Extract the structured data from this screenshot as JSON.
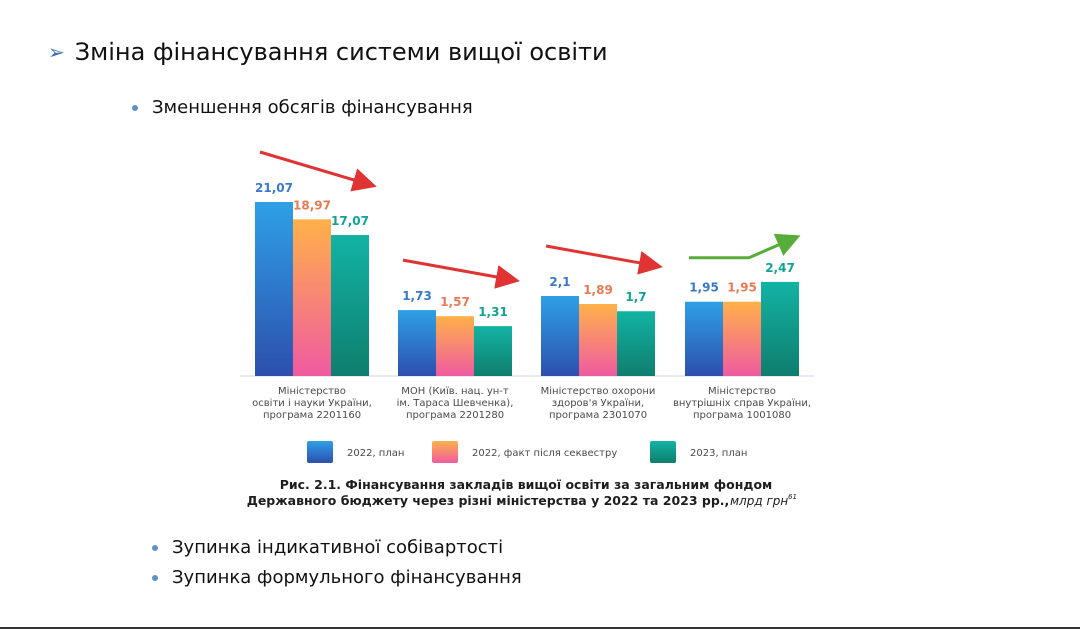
{
  "slide": {
    "title_marker": "➢",
    "title": "Зміна фінансування системи вищої освіти",
    "bullet_top": "Зменшення обсягів фінансування",
    "bullets_bottom": [
      "Зупинка індикативної собівартості",
      "Зупинка формульного фінансування"
    ]
  },
  "colors": {
    "series": [
      {
        "top": "#2ea0e6",
        "bottom": "#2d4fae"
      },
      {
        "top": "#ffb14a",
        "bottom": "#ef5aa0"
      },
      {
        "top": "#12b3a4",
        "bottom": "#0f7e6e"
      }
    ],
    "label": [
      "#3a79c9",
      "#e77a53",
      "#12a394"
    ],
    "trend_down": "#e03333",
    "trend_up": "#58ad3a"
  },
  "chart_data": {
    "type": "bar",
    "categories": [
      [
        "Міністерство",
        "освіти і науки України,",
        "програма 2201160"
      ],
      [
        "МОН (Київ. нац. ун-т",
        "ім. Тараса Шевченка),",
        "програма 2201280"
      ],
      [
        "Міністерство охорони",
        "здоров'я України,",
        "програма 2301070"
      ],
      [
        "Міністерство",
        "внутрішніх справ України,",
        "програма 1001080"
      ]
    ],
    "series": [
      {
        "name": "2022, план",
        "values": [
          21.07,
          1.73,
          2.1,
          1.95
        ],
        "labels": [
          "21,07",
          "1,73",
          "2,1",
          "1,95"
        ]
      },
      {
        "name": "2022, факт після секвестру",
        "values": [
          18.97,
          1.57,
          1.89,
          1.95
        ],
        "labels": [
          "18,97",
          "1,57",
          "1,89",
          "1,95"
        ]
      },
      {
        "name": "2023, план",
        "values": [
          17.07,
          1.31,
          1.7,
          2.47
        ],
        "labels": [
          "17,07",
          "1,31",
          "1,7",
          "2,47"
        ]
      }
    ],
    "trends": [
      "down",
      "down",
      "down",
      "up"
    ],
    "caption_line1": "Рис. 2.1. Фінансування закладів вищої освіти за загальним фондом",
    "caption_line2": "Державного бюджету через різні міністерства у 2022 та 2023 рр.,",
    "caption_unit": "млрд грн",
    "caption_footnote": "61"
  }
}
